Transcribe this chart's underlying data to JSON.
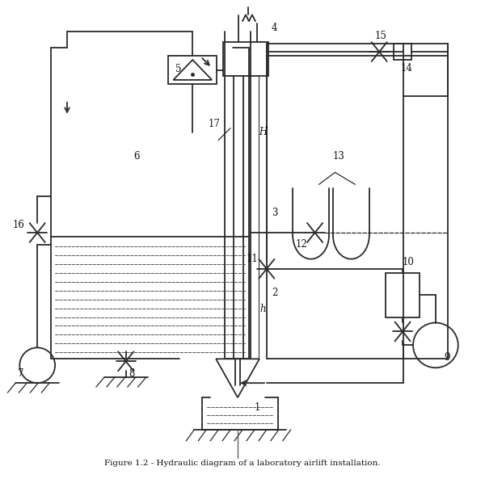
{
  "background": "#ffffff",
  "lc": "#2a2a2a",
  "lw": 1.3,
  "lw_thin": 0.8,
  "fig_w": 6.0,
  "fig_h": 5.93,
  "title": "Figure 1.2 - Hydraulic diagram of a laboratory airlift installation."
}
